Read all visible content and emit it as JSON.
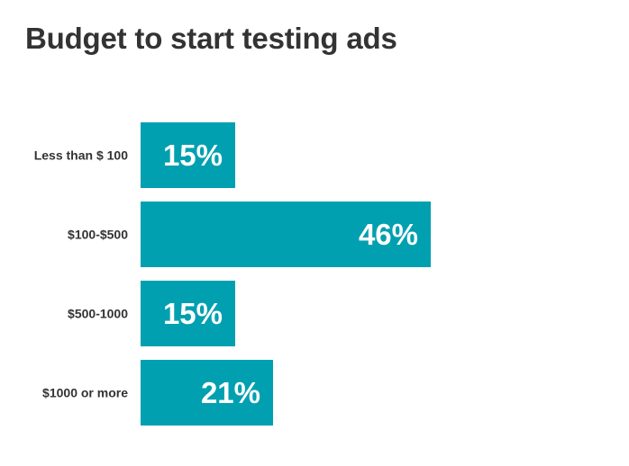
{
  "chart_data": {
    "type": "bar",
    "orientation": "horizontal",
    "title": "Budget to start testing ads",
    "categories": [
      "Less than $ 100",
      "$100-$500",
      "$500-1000",
      "$1000 or more"
    ],
    "values": [
      15,
      46,
      15,
      21
    ],
    "value_labels": [
      "15%",
      "46%",
      "15%",
      "21%"
    ],
    "unit": "%",
    "xlim": [
      0,
      50
    ],
    "grid": false,
    "legend": "none",
    "bar_color": "#00a0b0"
  }
}
